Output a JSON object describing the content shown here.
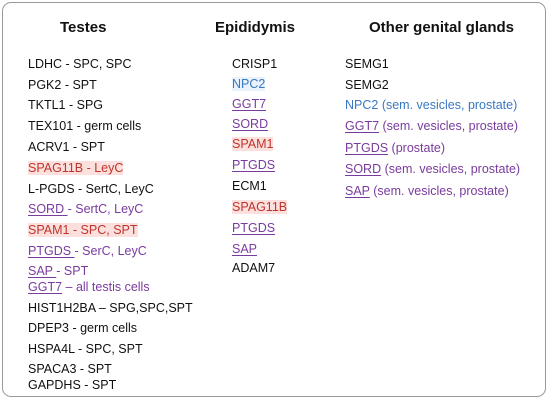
{
  "columns": [
    {
      "heading": "Testes",
      "entries": [
        {
          "parts": [
            {
              "text": "LDHC - SPC, SPC",
              "color": "black"
            }
          ]
        },
        {
          "parts": [
            {
              "text": "PGK2 - SPT",
              "color": "black"
            }
          ]
        },
        {
          "parts": [
            {
              "text": "TKTL1 - SPG",
              "color": "black"
            }
          ]
        },
        {
          "parts": [
            {
              "text": "TEX101 - germ cells",
              "color": "black"
            }
          ]
        },
        {
          "parts": [
            {
              "text": "ACRV1 - SPT",
              "color": "black"
            }
          ]
        },
        {
          "parts": [
            {
              "text": "SPAG11B - LeyC",
              "color": "red",
              "highlight": "red"
            }
          ]
        },
        {
          "parts": [
            {
              "text": "L-PGDS - SertC, LeyC",
              "color": "black"
            }
          ]
        },
        {
          "parts": [
            {
              "text": "SORD ",
              "color": "purple",
              "underline": true
            },
            {
              "text": "- SertC, LeyC",
              "color": "purple"
            }
          ]
        },
        {
          "parts": [
            {
              "text": "SPAM1 - SPC, SPT",
              "color": "red",
              "highlight": "red"
            }
          ]
        },
        {
          "parts": [
            {
              "text": "PTGDS ",
              "color": "purple",
              "underline": true
            },
            {
              "text": "- SerC, LeyC",
              "color": "purple"
            }
          ]
        },
        {
          "parts": [
            {
              "text": "SAP ",
              "color": "purple",
              "underline": true
            },
            {
              "text": "- SPT",
              "color": "purple"
            }
          ]
        },
        {
          "parts": [
            {
              "text": "GGT7",
              "color": "purple",
              "underline": true
            },
            {
              "text": " – all testis cells",
              "color": "purple"
            }
          ]
        },
        {
          "parts": [
            {
              "text": "HIST1H2BA – SPG,SPC,SPT",
              "color": "black"
            }
          ]
        },
        {
          "parts": [
            {
              "text": "DPEP3 - germ cells",
              "color": "black"
            }
          ]
        },
        {
          "parts": [
            {
              "text": "HSPA4L - SPC, SPT",
              "color": "black"
            }
          ]
        },
        {
          "parts": [
            {
              "text": "SPACA3 - SPT",
              "color": "black"
            }
          ]
        },
        {
          "parts": [
            {
              "text": "GAPDHS - SPT",
              "color": "black"
            }
          ]
        }
      ]
    },
    {
      "heading": "Epididymis",
      "entries": [
        {
          "parts": [
            {
              "text": "CRISP1",
              "color": "black"
            }
          ]
        },
        {
          "parts": [
            {
              "text": "NPC2",
              "color": "blue",
              "highlight": "blue"
            }
          ]
        },
        {
          "parts": [
            {
              "text": "GGT7",
              "color": "purple",
              "underline": true
            }
          ]
        },
        {
          "parts": [
            {
              "text": "SORD",
              "color": "purple",
              "underline": true
            }
          ]
        },
        {
          "parts": [
            {
              "text": "SPAM1",
              "color": "red",
              "highlight": "red"
            }
          ]
        },
        {
          "parts": [
            {
              "text": "PTGDS",
              "color": "purple",
              "underline": true
            }
          ]
        },
        {
          "parts": [
            {
              "text": "ECM1",
              "color": "black"
            }
          ]
        },
        {
          "parts": [
            {
              "text": "SPAG11B",
              "color": "red",
              "highlight": "red"
            }
          ]
        },
        {
          "parts": [
            {
              "text": "PTGDS",
              "color": "purple",
              "underline": true
            }
          ]
        },
        {
          "parts": [
            {
              "text": "SAP",
              "color": "purple",
              "underline": true
            }
          ]
        },
        {
          "parts": [
            {
              "text": "ADAM7",
              "color": "black"
            }
          ]
        }
      ]
    },
    {
      "heading": "Other genital glands",
      "entries": [
        {
          "parts": [
            {
              "text": "SEMG1",
              "color": "black"
            }
          ]
        },
        {
          "parts": [
            {
              "text": "SEMG2",
              "color": "black"
            }
          ]
        },
        {
          "parts": [
            {
              "text": "NPC2 (sem. vesicles, prostate)",
              "color": "blue"
            }
          ]
        },
        {
          "parts": [
            {
              "text": "GGT7",
              "color": "purple",
              "underline": true
            },
            {
              "text": " (sem. vesicles, prostate)",
              "color": "purple"
            }
          ]
        },
        {
          "parts": [
            {
              "text": "PTGDS",
              "color": "purple",
              "underline": true
            },
            {
              "text": " (prostate)",
              "color": "purple"
            }
          ]
        },
        {
          "parts": [
            {
              "text": "SORD",
              "color": "purple",
              "underline": true
            },
            {
              "text": " (sem. vesicles, prostate)",
              "color": "purple"
            }
          ]
        },
        {
          "parts": [
            {
              "text": "SAP",
              "color": "purple",
              "underline": true
            },
            {
              "text": " (sem. vesicles, prostate)",
              "color": "purple"
            }
          ]
        }
      ]
    }
  ],
  "colors": {
    "black": "#111111",
    "red": "#c0352b",
    "blue": "#3a78c2",
    "purple": "#7a3b9e",
    "highlight_red": "#fbe0de",
    "highlight_blue": "#eaf2fb",
    "border": "#9a9a9a"
  }
}
